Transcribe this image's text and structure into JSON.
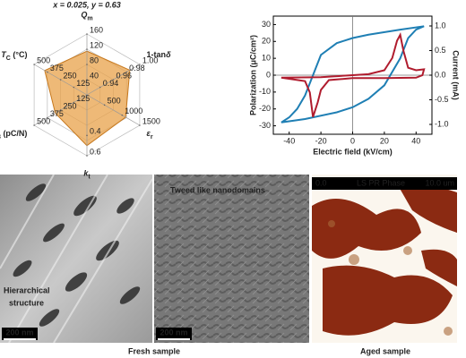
{
  "chart_data": [
    {
      "type": "radar",
      "title": "x = 0.025, y = 0.63",
      "color": "#e8a24a",
      "axes": [
        {
          "label": {
            "main": "Q",
            "sub": "m"
          },
          "lim": [
            0,
            160
          ],
          "ticks": [
            40,
            80,
            120,
            160
          ]
        },
        {
          "label": {
            "main": "1-tan",
            "sub2": "δ"
          },
          "lim": [
            0.92,
            1.0
          ],
          "ticks": [
            0.94,
            0.96,
            0.98,
            {
              "value": 1.0,
              "label": "1.00"
            }
          ]
        },
        {
          "label": {
            "main": "ε",
            "sub": "r"
          },
          "lim": [
            0,
            1500
          ],
          "ticks": [
            500,
            1000,
            1500
          ]
        },
        {
          "label": {
            "main": "k",
            "sub": "t"
          },
          "lim": [
            0,
            0.6
          ],
          "ticks": [
            0.4,
            0.6
          ]
        },
        {
          "label": {
            "main": "d",
            "sub": "33",
            "rest": " (pC/N)"
          },
          "lim": [
            0,
            500
          ],
          "ticks": [
            125,
            250,
            375,
            500
          ]
        },
        {
          "label": {
            "main": "T",
            "sub": "C",
            "rest": " (°C)"
          },
          "lim": [
            0,
            500
          ],
          "ticks": [
            125,
            250,
            375,
            500
          ]
        }
      ],
      "values": [
        115,
        0.985,
        1100,
        0.5,
        300,
        400
      ]
    },
    {
      "type": "line",
      "xlabel": "Electric field (kV/cm)",
      "ylabel": "Polarization (μC/cm²)",
      "y2label": "Current (mA)",
      "xlim": [
        -50,
        50
      ],
      "xticks": [
        -40,
        -20,
        0,
        20,
        40
      ],
      "ylim": [
        -35,
        35
      ],
      "yticks": [
        -30,
        -20,
        -10,
        0,
        10,
        20,
        30
      ],
      "y2lim": [
        -1.2,
        1.2
      ],
      "y2ticks": [
        {
          "value": -1.0,
          "label": "-1.0"
        },
        -0.5,
        {
          "value": 0.0,
          "label": "0.0"
        },
        0.5,
        {
          "value": 1.0,
          "label": "1.0"
        }
      ],
      "series": [
        {
          "name": "Polarization",
          "color": "#1f7fb4",
          "x": [
            -45,
            -30,
            -10,
            0,
            10,
            20,
            30,
            35,
            40,
            45,
            30,
            10,
            0,
            -10,
            -20,
            -25,
            -30,
            -35,
            -40,
            -45
          ],
          "values": [
            -28,
            -26,
            -22,
            -19,
            -14,
            -6,
            10,
            22,
            27,
            29,
            27,
            24,
            22,
            19,
            12,
            0,
            -12,
            -20,
            -25,
            -28
          ]
        },
        {
          "name": "Current",
          "color": "#b01c2e",
          "axis": "y2",
          "x": [
            -45,
            -20,
            0,
            10,
            20,
            25,
            28,
            30,
            32,
            35,
            40,
            45,
            44,
            40,
            20,
            0,
            -15,
            -20,
            -22,
            -25,
            -27,
            -30,
            -45
          ],
          "values": [
            -0.05,
            -0.04,
            0.0,
            0.02,
            0.1,
            0.35,
            0.7,
            0.82,
            0.5,
            0.15,
            0.1,
            0.12,
            0.0,
            -0.05,
            -0.06,
            -0.06,
            -0.1,
            -0.3,
            -0.55,
            -0.85,
            -0.35,
            -0.12,
            -0.05
          ]
        }
      ]
    }
  ],
  "images": [
    {
      "caption_lines": [
        "Hierarchical",
        "structure"
      ],
      "scale": "200 nm"
    },
    {
      "caption_lines": [
        "Tweed like nanodomains"
      ],
      "scale": "200 nm"
    },
    {
      "bar": [
        "0.0",
        "LS PR Phase",
        "10.0 um"
      ]
    }
  ],
  "group_captions": [
    "Fresh sample",
    "Aged sample"
  ]
}
